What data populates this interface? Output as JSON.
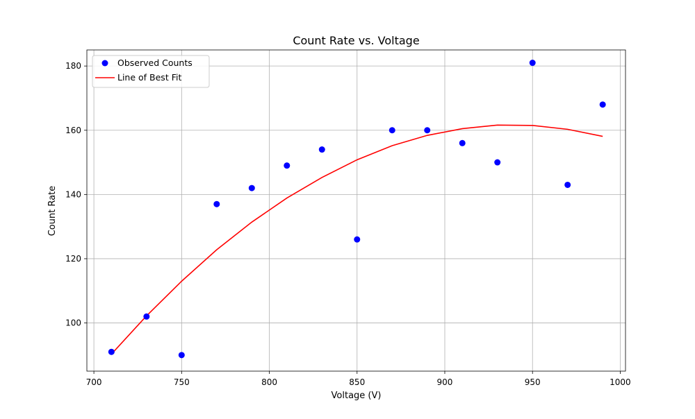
{
  "chart_data": {
    "type": "scatter",
    "title": "Count Rate vs. Voltage",
    "xlabel": "Voltage (V)",
    "ylabel": "Count Rate",
    "xlim": [
      696,
      1003
    ],
    "ylim": [
      85,
      185
    ],
    "xticks": [
      700,
      750,
      800,
      850,
      900,
      950,
      1000
    ],
    "yticks": [
      100,
      120,
      140,
      160,
      180
    ],
    "grid": true,
    "legend_position": "upper-left",
    "series": [
      {
        "name": "Observed Counts",
        "kind": "markers",
        "color": "#0000ff",
        "x": [
          710,
          730,
          750,
          770,
          790,
          810,
          830,
          850,
          870,
          890,
          910,
          930,
          950,
          970,
          990
        ],
        "y": [
          91,
          102,
          90,
          137,
          142,
          149,
          154,
          126,
          160,
          160,
          156,
          150,
          181,
          143,
          168
        ]
      },
      {
        "name": "Line of Best Fit",
        "kind": "line",
        "color": "#ff0000",
        "x": [
          710,
          730,
          750,
          770,
          790,
          810,
          830,
          850,
          870,
          890,
          910,
          930,
          950,
          970,
          990
        ],
        "y": [
          90.3,
          102.2,
          113.0,
          122.8,
          131.4,
          138.9,
          145.3,
          150.8,
          155.2,
          158.4,
          160.5,
          161.6,
          161.5,
          160.3,
          158.1
        ]
      }
    ]
  }
}
